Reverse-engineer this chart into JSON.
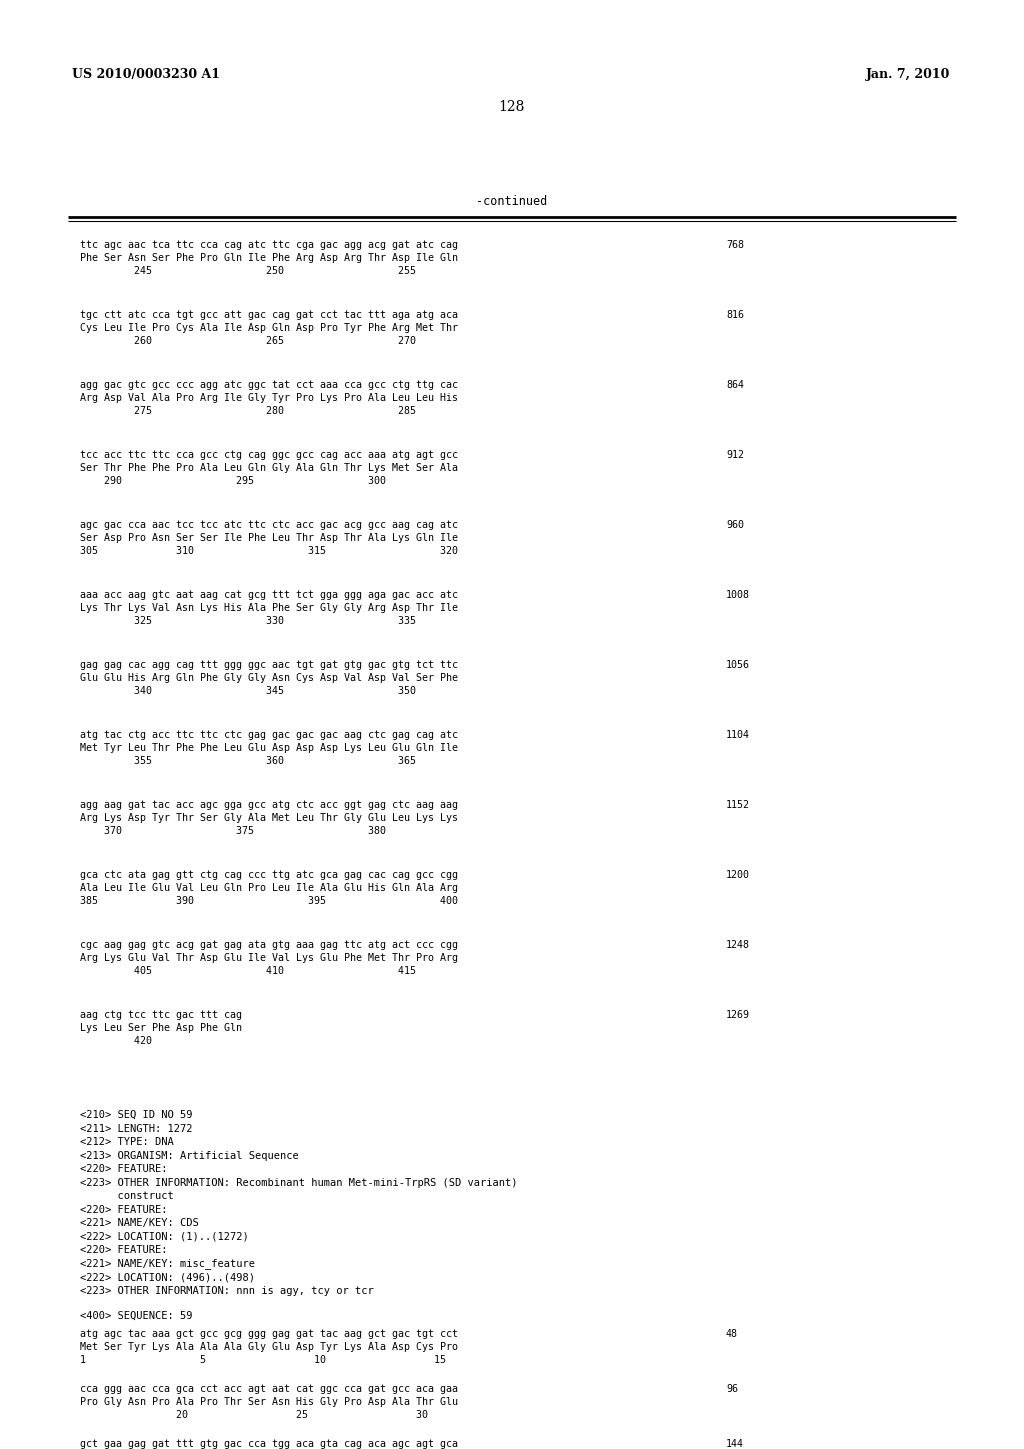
{
  "page_left": "US 2010/0003230 A1",
  "page_right": "Jan. 7, 2010",
  "page_number": "128",
  "continued_label": "-continued",
  "background_color": "#ffffff",
  "text_color": "#000000",
  "content_blocks": [
    {
      "dna": "ttc agc aac tca ttc cca cag atc ttc cga gac agg acg gat atc cag",
      "aa": "Phe Ser Asn Ser Phe Pro Gln Ile Phe Arg Asp Arg Thr Asp Ile Gln",
      "nums": "         245                   250                   255",
      "num_right": "768"
    },
    {
      "dna": "tgc ctt atc cca tgt gcc att gac cag gat cct tac ttt aga atg aca",
      "aa": "Cys Leu Ile Pro Cys Ala Ile Asp Gln Asp Pro Tyr Phe Arg Met Thr",
      "nums": "         260                   265                   270",
      "num_right": "816"
    },
    {
      "dna": "agg gac gtc gcc ccc agg atc ggc tat cct aaa cca gcc ctg ttg cac",
      "aa": "Arg Asp Val Ala Pro Arg Ile Gly Tyr Pro Lys Pro Ala Leu Leu His",
      "nums": "         275                   280                   285",
      "num_right": "864"
    },
    {
      "dna": "tcc acc ttc ttc cca gcc ctg cag ggc gcc cag acc aaa atg agt gcc",
      "aa": "Ser Thr Phe Phe Pro Ala Leu Gln Gly Ala Gln Thr Lys Met Ser Ala",
      "nums": "    290                   295                   300",
      "num_right": "912"
    },
    {
      "dna": "agc gac cca aac tcc tcc atc ttc ctc acc gac acg gcc aag cag atc",
      "aa": "Ser Asp Pro Asn Ser Ser Ile Phe Leu Thr Asp Thr Ala Lys Gln Ile",
      "nums": "305             310                   315                   320",
      "num_right": "960"
    },
    {
      "dna": "aaa acc aag gtc aat aag cat gcg ttt tct gga ggg aga gac acc atc",
      "aa": "Lys Thr Lys Val Asn Lys His Ala Phe Ser Gly Gly Arg Asp Thr Ile",
      "nums": "         325                   330                   335",
      "num_right": "1008"
    },
    {
      "dna": "gag gag cac agg cag ttt ggg ggc aac tgt gat gtg gac gtg tct ttc",
      "aa": "Glu Glu His Arg Gln Phe Gly Gly Asn Cys Asp Val Asp Val Ser Phe",
      "nums": "         340                   345                   350",
      "num_right": "1056"
    },
    {
      "dna": "atg tac ctg acc ttc ttc ctc gag gac gac gac aag ctc gag cag atc",
      "aa": "Met Tyr Leu Thr Phe Phe Leu Glu Asp Asp Asp Lys Leu Glu Gln Ile",
      "nums": "         355                   360                   365",
      "num_right": "1104"
    },
    {
      "dna": "agg aag gat tac acc agc gga gcc atg ctc acc ggt gag ctc aag aag",
      "aa": "Arg Lys Asp Tyr Thr Ser Gly Ala Met Leu Thr Gly Glu Leu Lys Lys",
      "nums": "    370                   375                   380",
      "num_right": "1152"
    },
    {
      "dna": "gca ctc ata gag gtt ctg cag ccc ttg atc gca gag cac cag gcc cgg",
      "aa": "Ala Leu Ile Glu Val Leu Gln Pro Leu Ile Ala Glu His Gln Ala Arg",
      "nums": "385             390                   395                   400",
      "num_right": "1200"
    },
    {
      "dna": "cgc aag gag gtc acg gat gag ata gtg aaa gag ttc atg act ccc cgg",
      "aa": "Arg Lys Glu Val Thr Asp Glu Ile Val Lys Glu Phe Met Thr Pro Arg",
      "nums": "         405                   410                   415",
      "num_right": "1248"
    },
    {
      "dna": "aag ctg tcc ttc gac ttt cag",
      "aa": "Lys Leu Ser Phe Asp Phe Gln",
      "nums": "         420",
      "num_right": "1269"
    }
  ],
  "metadata_lines": [
    "<210> SEQ ID NO 59",
    "<211> LENGTH: 1272",
    "<212> TYPE: DNA",
    "<213> ORGANISM: Artificial Sequence",
    "<220> FEATURE:",
    "<223> OTHER INFORMATION: Recombinant human Met-mini-TrpRS (SD variant)",
    "      construct",
    "<220> FEATURE:",
    "<221> NAME/KEY: CDS",
    "<222> LOCATION: (1)..(1272)",
    "<220> FEATURE:",
    "<221> NAME/KEY: misc_feature",
    "<222> LOCATION: (496)..(498)",
    "<223> OTHER INFORMATION: nnn is agy, tcy or tcr"
  ],
  "seq_header": "<400> SEQUENCE: 59",
  "seq_blocks": [
    {
      "dna": "atg agc tac aaa gct gcc gcg ggg gag gat tac aag gct gac tgt cct",
      "aa": "Met Ser Tyr Lys Ala Ala Ala Gly Glu Asp Tyr Lys Ala Asp Cys Pro",
      "nums": "1                   5                  10                  15",
      "num_right": "48"
    },
    {
      "dna": "cca ggg aac cca gca cct acc agt aat cat ggc cca gat gcc aca gaa",
      "aa": "Pro Gly Asn Pro Ala Pro Thr Ser Asn His Gly Pro Asp Ala Thr Glu",
      "nums": "                20                  25                  30",
      "num_right": "96"
    },
    {
      "dna": "gct gaa gag gat ttt gtg gac cca tgg aca gta cag aca agc agt gca",
      "aa": "",
      "nums": "",
      "num_right": "144"
    }
  ]
}
